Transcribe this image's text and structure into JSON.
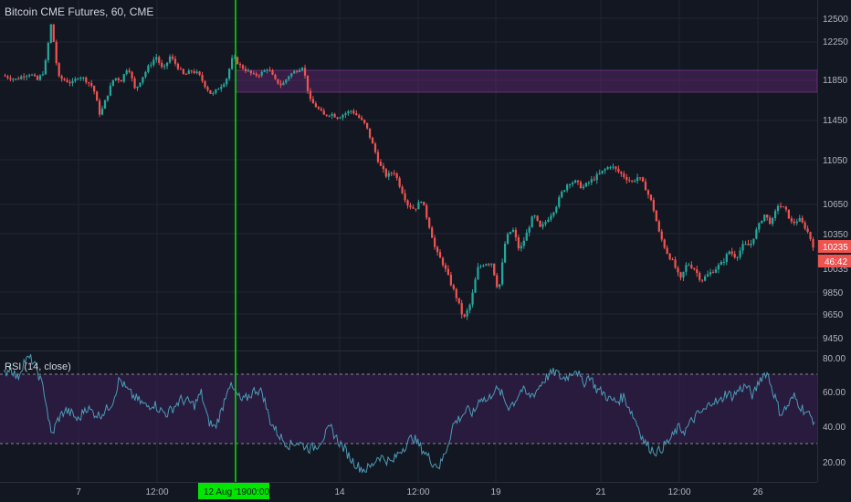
{
  "header": {
    "symbol_title": "Bitcoin CME Futures, 60, CME"
  },
  "rsi_panel": {
    "title": "RSI (14, close)",
    "y_ticks": [
      "80.00",
      "60.00",
      "40.00",
      "20.00"
    ]
  },
  "price_axis": {
    "ticks": [
      "12500",
      "12250",
      "11850",
      "11450",
      "11050",
      "10650",
      "10350",
      "9850",
      "9650",
      "9450"
    ],
    "last_price_label": "10235",
    "countdown_label": "46:42",
    "hidden_partial_label": "10035"
  },
  "time_axis": {
    "ticks": [
      "7",
      "12:00",
      "14",
      "12:00",
      "19",
      "21",
      "12:00",
      "26"
    ],
    "crosshair_date": "12 Aug '19",
    "crosshair_time": "00:00"
  },
  "colors": {
    "background": "#131722",
    "up_candle": "#26a69a",
    "down_candle": "#ef5350",
    "crosshair": "#00e600",
    "zone_fill": "#7b2a8a",
    "rsi_line": "#4b9bb5",
    "rsi_band": "#3a1f55"
  },
  "chart_data": [
    {
      "type": "candlestick",
      "title": "Bitcoin CME Futures, 60, CME",
      "y_axis_ticks": [
        12500,
        12250,
        11850,
        11450,
        11050,
        10650,
        10350,
        9850,
        9650,
        9450
      ],
      "x_tick_labels": [
        "7",
        "12:00",
        "14",
        "12:00",
        "19",
        "21",
        "12:00",
        "26"
      ],
      "close_path_estimate": [
        11900,
        11880,
        11860,
        11900,
        11920,
        11850,
        11950,
        12450,
        11880,
        11850,
        11820,
        11900,
        11850,
        11780,
        11500,
        11700,
        11880,
        11850,
        12000,
        11750,
        11880,
        12000,
        12100,
        11950,
        12100,
        12000,
        11900,
        11950,
        11920,
        11800,
        11700,
        11780,
        11850,
        12100,
        12000,
        11950,
        11900,
        11920,
        11980,
        11850,
        11800,
        11900,
        11950,
        12000,
        11650,
        11580,
        11500,
        11520,
        11480,
        11520,
        11550,
        11480,
        11400,
        11200,
        11000,
        10900,
        10950,
        10800,
        10650,
        10600,
        10700,
        10450,
        10200,
        10100,
        9950,
        9800,
        9600,
        9750,
        10050,
        10100,
        10100,
        9850,
        10300,
        10400,
        10200,
        10350,
        10550,
        10400,
        10500,
        10600,
        10750,
        10850,
        10850,
        10800,
        10850,
        10900,
        10950,
        11000,
        10950,
        10900,
        10850,
        10900,
        10800,
        10650,
        10350,
        10200,
        10100,
        9950,
        10100,
        10050,
        9950,
        10000,
        10050,
        10100,
        10200,
        10150,
        10250,
        10250,
        10400,
        10550,
        10450,
        10650,
        10600,
        10450,
        10500,
        10400,
        10250
      ],
      "last_price": 10235,
      "resistance_zone": [
        11770,
        11930
      ],
      "crosshair_x_label": "12 Aug '19  00:00"
    },
    {
      "type": "line",
      "title": "RSI (14, close)",
      "y_axis_ticks": [
        80.0,
        60.0,
        40.0,
        20.0
      ],
      "reference_lines": [
        70,
        30
      ],
      "band": [
        30,
        70
      ],
      "values_estimate": [
        70,
        75,
        68,
        78,
        80,
        72,
        60,
        35,
        45,
        50,
        48,
        44,
        52,
        49,
        47,
        50,
        55,
        68,
        62,
        58,
        55,
        52,
        54,
        50,
        48,
        52,
        56,
        55,
        53,
        60,
        44,
        40,
        50,
        65,
        60,
        55,
        58,
        62,
        60,
        45,
        38,
        33,
        30,
        32,
        30,
        28,
        30,
        35,
        40,
        33,
        28,
        22,
        18,
        16,
        18,
        24,
        22,
        20,
        26,
        30,
        35,
        30,
        25,
        20,
        18,
        28,
        42,
        46,
        50,
        48,
        58,
        55,
        62,
        60,
        52,
        55,
        62,
        58,
        60,
        66,
        70,
        72,
        68,
        70,
        74,
        65,
        70,
        62,
        60,
        56,
        55,
        58,
        50,
        42,
        32,
        28,
        26,
        30,
        34,
        40,
        38,
        44,
        48,
        50,
        56,
        54,
        60,
        58,
        62,
        64,
        58,
        68,
        72,
        60,
        48,
        52,
        58,
        52,
        48,
        44
      ]
    }
  ]
}
